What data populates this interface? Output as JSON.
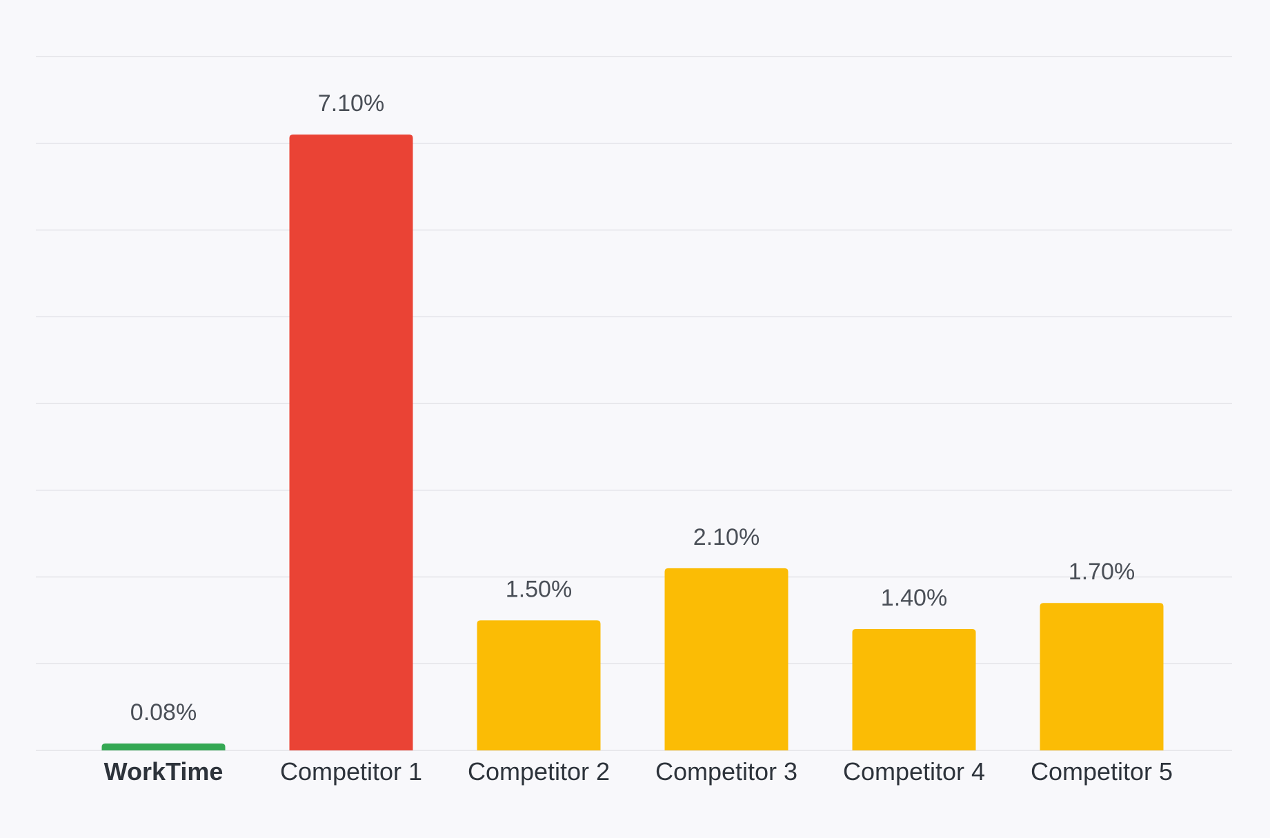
{
  "chart_data": {
    "type": "bar",
    "categories": [
      "WorkTime",
      "Competitor 1",
      "Competitor 2",
      "Competitor 3",
      "Competitor 4",
      "Competitor 5"
    ],
    "values": [
      0.08,
      7.1,
      1.5,
      2.1,
      1.4,
      1.7
    ],
    "value_labels": [
      "0.08%",
      "7.10%",
      "1.50%",
      "2.10%",
      "1.40%",
      "1.70%"
    ],
    "bar_colors": [
      "#34a853",
      "#ea4335",
      "#fbbc05",
      "#fbbc05",
      "#fbbc05",
      "#fbbc05"
    ],
    "highlighted_category": "WorkTime",
    "title": "",
    "xlabel": "",
    "ylabel": "",
    "ylim": [
      0,
      8
    ],
    "grid": true,
    "legend": "none"
  }
}
